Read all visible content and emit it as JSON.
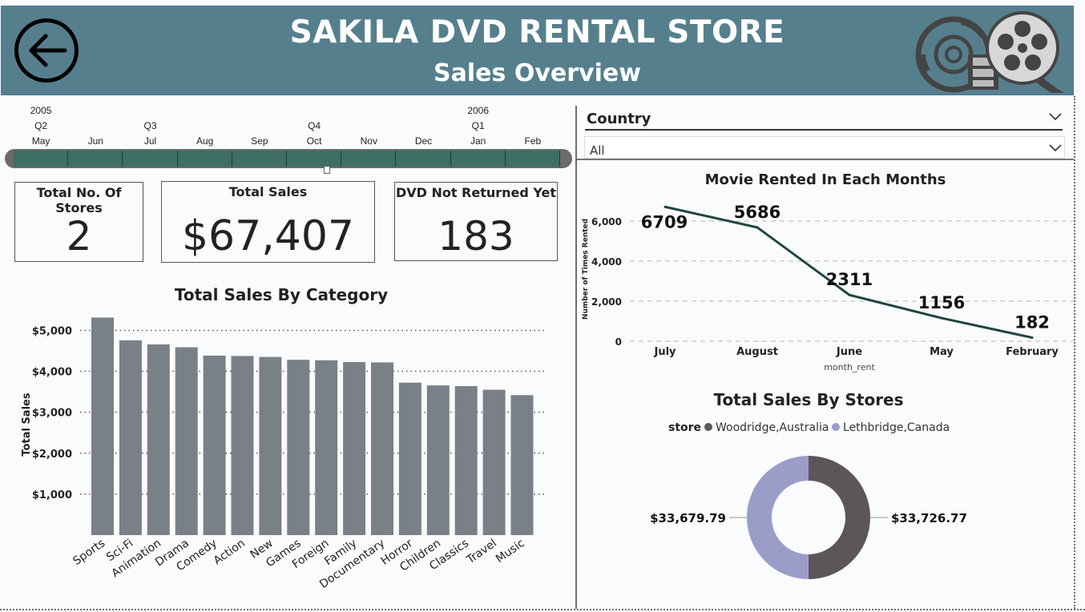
{
  "header": {
    "title": "SAKILA DVD RENTAL STORE",
    "subtitle": "Sales Overview"
  },
  "timeline": {
    "years": [
      {
        "label": "2005",
        "col": 0
      },
      {
        "label": "2006",
        "col": 8
      }
    ],
    "quarters": [
      {
        "label": "Q2",
        "col": 0
      },
      {
        "label": "Q3",
        "col": 2
      },
      {
        "label": "Q4",
        "col": 5
      },
      {
        "label": "Q1",
        "col": 8
      }
    ],
    "months": [
      "May",
      "Jun",
      "Jul",
      "Aug",
      "Sep",
      "Oct",
      "Nov",
      "Dec",
      "Jan",
      "Feb"
    ]
  },
  "cards": {
    "stores": {
      "title": "Total No. Of Stores",
      "value": "2"
    },
    "sales": {
      "title": "Total Sales",
      "value": "$67,407"
    },
    "not_returned": {
      "title": "DVD Not Returned Yet",
      "value": "183"
    }
  },
  "slicer": {
    "title": "Country",
    "value": "All"
  },
  "chart_data": [
    {
      "type": "bar",
      "title": "Total Sales By Category",
      "ylabel": "Total Sales",
      "xlabel": "",
      "ylim": [
        0,
        5400
      ],
      "yticks": [
        1000,
        2000,
        3000,
        4000,
        5000
      ],
      "ytick_labels": [
        "$1,000",
        "$2,000",
        "$3,000",
        "$4,000",
        "$5,000"
      ],
      "categories": [
        "Sports",
        "Sci-Fi",
        "Animation",
        "Drama",
        "Comedy",
        "Action",
        "New",
        "Games",
        "Foreign",
        "Family",
        "Documentary",
        "Horror",
        "Children",
        "Classics",
        "Travel",
        "Music"
      ],
      "values": [
        5314,
        4757,
        4657,
        4587,
        4384,
        4375,
        4352,
        4282,
        4270,
        4226,
        4218,
        3723,
        3656,
        3640,
        3550,
        3418
      ],
      "color": "#7a8087",
      "grid": true
    },
    {
      "type": "line",
      "title": "Movie Rented In Each Months",
      "xlabel": "month_rent",
      "ylabel": "Number of Times Rented",
      "ylim": [
        0,
        7000
      ],
      "yticks": [
        0,
        2000,
        4000,
        6000
      ],
      "ytick_labels": [
        "0",
        "2,000",
        "4,000",
        "6,000"
      ],
      "x": [
        "July",
        "August",
        "June",
        "May",
        "February"
      ],
      "values": [
        6709,
        5686,
        2311,
        1156,
        182
      ],
      "labels": [
        "6709",
        "5686",
        "2311",
        "1156",
        "182"
      ],
      "color": "#1f4540",
      "grid": true
    },
    {
      "type": "pie",
      "title": "Total Sales By Stores",
      "legend_title": "store",
      "slices": [
        {
          "name": "Woodridge,Australia",
          "value": 33726.77,
          "label": "$33,726.77",
          "color": "#5d5659"
        },
        {
          "name": "Lethbridge,Canada",
          "value": 33679.79,
          "label": "$33,679.79",
          "color": "#9b9dc9"
        }
      ]
    }
  ]
}
